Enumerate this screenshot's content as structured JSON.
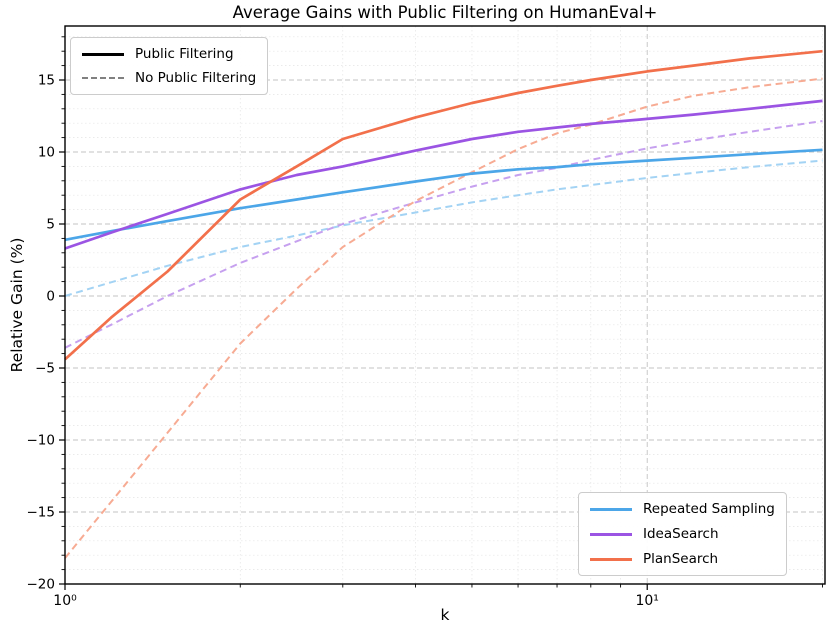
{
  "title": "Average Gains with Public Filtering on HumanEval+",
  "axes": {
    "xlabel": "k",
    "ylabel": "Relative Gain (%)",
    "x_scale": "log",
    "xlim": [
      1,
      20.2
    ],
    "ylim": [
      -20,
      18.75
    ],
    "x_ticks": [
      {
        "v": 1,
        "label": "10⁰"
      },
      {
        "v": 10,
        "label": "10¹"
      }
    ],
    "x_minor_ticks": [
      2,
      3,
      4,
      5,
      6,
      7,
      8,
      9,
      20
    ],
    "y_ticks": [
      {
        "v": 15,
        "label": "15"
      },
      {
        "v": 10,
        "label": "10"
      },
      {
        "v": 5,
        "label": "5"
      },
      {
        "v": 0,
        "label": "0"
      },
      {
        "v": -5,
        "label": "−5"
      },
      {
        "v": -10,
        "label": "−10"
      },
      {
        "v": -15,
        "label": "−15"
      },
      {
        "v": -20,
        "label": "−20"
      }
    ]
  },
  "legend_style": {
    "items": [
      {
        "label": "Public Filtering",
        "line": "solid",
        "color": "#000000"
      },
      {
        "label": "No Public Filtering",
        "line": "dashed",
        "color": "#808080"
      }
    ]
  },
  "legend_series": {
    "items": [
      {
        "label": "Repeated Sampling",
        "line": "solid",
        "color": "#4CA6E8"
      },
      {
        "label": "IdeaSearch",
        "line": "solid",
        "color": "#9B54E3"
      },
      {
        "label": "PlanSearch",
        "line": "solid",
        "color": "#F2704B"
      }
    ]
  },
  "chart_data": {
    "type": "line",
    "title": "Average Gains with Public Filtering on HumanEval+",
    "xlabel": "k",
    "ylabel": "Relative Gain (%)",
    "x_scale": "log",
    "xlim": [
      1,
      20.2
    ],
    "ylim": [
      -20,
      18.75
    ],
    "grid": true,
    "legend_line_styles": {
      "position": "upper left",
      "entries": [
        "Public Filtering (solid)",
        "No Public Filtering (dashed)"
      ]
    },
    "legend_series": {
      "position": "lower right",
      "entries": [
        "Repeated Sampling",
        "IdeaSearch",
        "PlanSearch"
      ]
    },
    "x": [
      1,
      1.2,
      1.5,
      2,
      2.5,
      3,
      4,
      5,
      6,
      7,
      8,
      10,
      12,
      15,
      20
    ],
    "series": [
      {
        "name": "Repeated Sampling (Public Filtering)",
        "color": "#4CA6E8",
        "style": "solid",
        "values": [
          3.9,
          4.5,
          5.2,
          6.1,
          6.7,
          7.2,
          7.95,
          8.5,
          8.8,
          8.95,
          9.15,
          9.4,
          9.6,
          9.85,
          10.15
        ]
      },
      {
        "name": "IdeaSearch (Public Filtering)",
        "color": "#9B54E3",
        "style": "solid",
        "values": [
          3.3,
          4.4,
          5.7,
          7.4,
          8.4,
          9.0,
          10.1,
          10.9,
          11.4,
          11.7,
          11.95,
          12.3,
          12.6,
          13.0,
          13.55
        ]
      },
      {
        "name": "PlanSearch (Public Filtering)",
        "color": "#F2704B",
        "style": "solid",
        "values": [
          -4.4,
          -1.5,
          1.7,
          6.7,
          9.0,
          10.9,
          12.4,
          13.4,
          14.1,
          14.6,
          15.0,
          15.6,
          16.0,
          16.5,
          17.0
        ]
      },
      {
        "name": "Repeated Sampling (No Public Filtering)",
        "color": "#A3D3F4",
        "style": "dashed",
        "values": [
          0.0,
          0.95,
          2.1,
          3.4,
          4.2,
          4.9,
          5.8,
          6.5,
          7.0,
          7.4,
          7.7,
          8.2,
          8.55,
          8.95,
          9.4
        ]
      },
      {
        "name": "IdeaSearch (No Public Filtering)",
        "color": "#C6A0EF",
        "style": "dashed",
        "values": [
          -3.6,
          -2.0,
          0.0,
          2.3,
          3.8,
          5.0,
          6.5,
          7.6,
          8.4,
          8.9,
          9.45,
          10.25,
          10.8,
          11.4,
          12.15
        ]
      },
      {
        "name": "PlanSearch (No Public Filtering)",
        "color": "#F7AB93",
        "style": "dashed",
        "values": [
          -18.2,
          -14.3,
          -9.5,
          -3.3,
          0.5,
          3.4,
          6.6,
          8.6,
          10.2,
          11.3,
          11.9,
          13.15,
          13.9,
          14.5,
          15.1
        ]
      }
    ]
  }
}
